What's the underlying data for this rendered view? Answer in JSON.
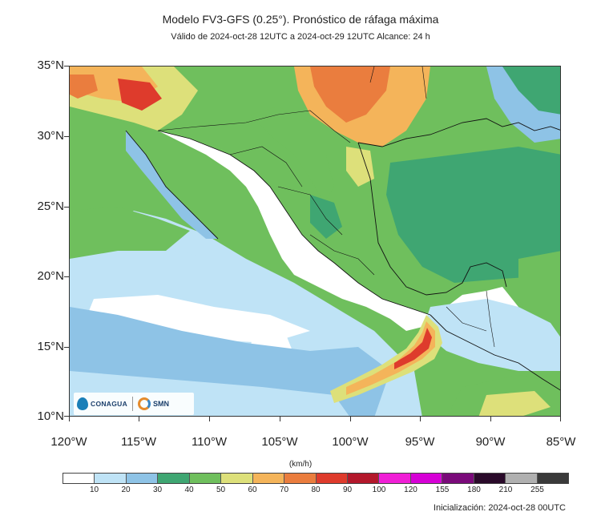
{
  "title": "Modelo FV3-GFS (0.25°). Pronóstico de ráfaga máxima",
  "subtitle": "Válido de 2024-oct-28 12UTC a 2024-oct-29 12UTC    Alcance: 24 h",
  "lat_labels": [
    "35°N",
    "30°N",
    "25°N",
    "20°N",
    "15°N",
    "10°N"
  ],
  "lon_labels": [
    "120°W",
    "115°W",
    "110°W",
    "105°W",
    "100°W",
    "95°W",
    "90°W",
    "85°W"
  ],
  "legend": {
    "units": "(km/h)",
    "labels": [
      "10",
      "20",
      "30",
      "40",
      "50",
      "60",
      "70",
      "80",
      "90",
      "100",
      "120",
      "155",
      "180",
      "210",
      "255"
    ],
    "colors": [
      "#ffffff",
      "#bfe3f6",
      "#8ec3e6",
      "#3fa672",
      "#6fbf5d",
      "#dde07a",
      "#f4b45a",
      "#ea7d3e",
      "#de3b2c",
      "#b3182b",
      "#f01fd6",
      "#d600d6",
      "#7a0a7a",
      "#2a0a2a",
      "#b0b0b0",
      "#3a3a3a"
    ]
  },
  "initialization": "Inicialización: 2024-oct-28 00UTC",
  "logos": {
    "conagua": "CONAGUA",
    "smn": "SMN"
  }
}
